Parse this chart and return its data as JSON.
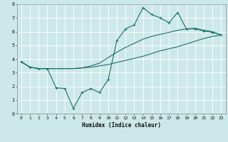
{
  "xlabel": "Humidex (Indice chaleur)",
  "bg_color": "#cde8e8",
  "grid_color": "#ffffff",
  "line_color": "#1a7068",
  "xlim": [
    -0.5,
    23.5
  ],
  "ylim": [
    0,
    8
  ],
  "xticks": [
    0,
    1,
    2,
    3,
    4,
    5,
    6,
    7,
    8,
    9,
    10,
    11,
    12,
    13,
    14,
    15,
    16,
    17,
    18,
    19,
    20,
    21,
    22,
    23
  ],
  "yticks": [
    0,
    1,
    2,
    3,
    4,
    5,
    6,
    7,
    8
  ],
  "line1_x": [
    0,
    1,
    2,
    3,
    4,
    5,
    6,
    7,
    8,
    9,
    10,
    11,
    12,
    13,
    14,
    15,
    16,
    17,
    18,
    19,
    20,
    21,
    22,
    23
  ],
  "line1_y": [
    3.8,
    3.4,
    3.3,
    3.3,
    3.3,
    3.3,
    3.3,
    3.35,
    3.4,
    3.5,
    3.6,
    3.75,
    3.9,
    4.05,
    4.2,
    4.4,
    4.6,
    4.75,
    4.9,
    5.1,
    5.3,
    5.5,
    5.65,
    5.75
  ],
  "line2_x": [
    0,
    1,
    2,
    3,
    4,
    5,
    6,
    7,
    8,
    9,
    10,
    11,
    12,
    13,
    14,
    15,
    16,
    17,
    18,
    19,
    20,
    21,
    22,
    23
  ],
  "line2_y": [
    3.8,
    3.4,
    3.3,
    3.3,
    3.3,
    3.3,
    3.3,
    3.35,
    3.5,
    3.7,
    4.1,
    4.5,
    4.85,
    5.15,
    5.45,
    5.65,
    5.8,
    5.95,
    6.1,
    6.2,
    6.25,
    6.1,
    6.0,
    5.75
  ],
  "line3_x": [
    0,
    1,
    2,
    3,
    4,
    5,
    6,
    7,
    8,
    9,
    10,
    11,
    12,
    13,
    14,
    15,
    16,
    17,
    18,
    19,
    20,
    21,
    22,
    23
  ],
  "line3_y": [
    3.8,
    3.4,
    3.3,
    3.3,
    1.9,
    1.85,
    0.4,
    1.55,
    1.85,
    1.55,
    2.5,
    5.35,
    6.2,
    6.5,
    7.75,
    7.25,
    7.0,
    6.65,
    7.4,
    6.2,
    6.2,
    6.05,
    5.95,
    5.75
  ],
  "marker": "+",
  "marker_size": 2.5,
  "linewidth": 0.8,
  "tick_fontsize": 4.5,
  "xlabel_fontsize": 5.5
}
